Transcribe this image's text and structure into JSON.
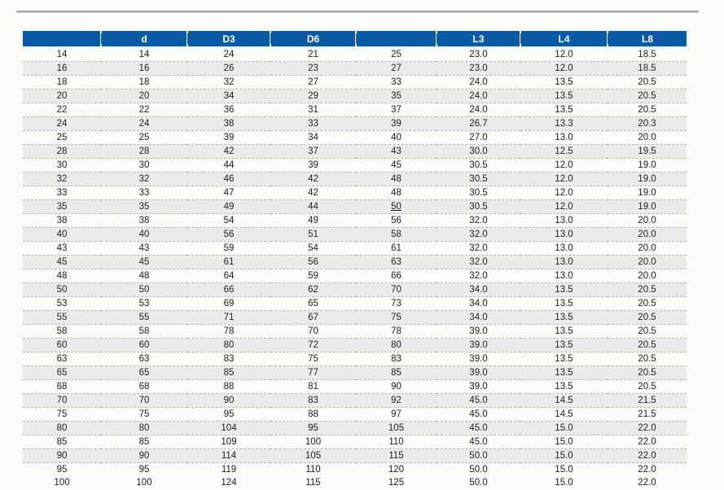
{
  "colors": {
    "header_bg": "#0a5aa5",
    "header_text": "#ffffff",
    "stripe_bg": "#ebebeb",
    "body_text": "#1e1e1e"
  },
  "table": {
    "columns": [
      "",
      "d",
      "D3",
      "D6",
      "",
      "L3",
      "L4",
      "L8"
    ],
    "rows": [
      [
        "14",
        "14",
        "24",
        "21",
        "25",
        "23.0",
        "12.0",
        "18.5"
      ],
      [
        "16",
        "16",
        "26",
        "23",
        "27",
        "23.0",
        "12.0",
        "18.5"
      ],
      [
        "18",
        "18",
        "32",
        "27",
        "33",
        "24.0",
        "13.5",
        "20.5"
      ],
      [
        "20",
        "20",
        "34",
        "29",
        "35",
        "24.0",
        "13.5",
        "20.5"
      ],
      [
        "22",
        "22",
        "36",
        "31",
        "37",
        "24.0",
        "13.5",
        "20.5"
      ],
      [
        "24",
        "24",
        "38",
        "33",
        "39",
        "26.7",
        "13.3",
        "20.3"
      ],
      [
        "25",
        "25",
        "39",
        "34",
        "40",
        "27.0",
        "13.0",
        "20.0"
      ],
      [
        "28",
        "28",
        "42",
        "37",
        "43",
        "30.0",
        "12.5",
        "19.5"
      ],
      [
        "30",
        "30",
        "44",
        "39",
        "45",
        "30.5",
        "12.0",
        "19.0"
      ],
      [
        "32",
        "32",
        "46",
        "42",
        "48",
        "30.5",
        "12.0",
        "19.0"
      ],
      [
        "33",
        "33",
        "47",
        "42",
        "48",
        "30.5",
        "12.0",
        "19.0"
      ],
      [
        "35",
        "35",
        "49",
        "44",
        "50",
        "30.5",
        "12.0",
        "19.0"
      ],
      [
        "38",
        "38",
        "54",
        "49",
        "56",
        "32.0",
        "13.0",
        "20.0"
      ],
      [
        "40",
        "40",
        "56",
        "51",
        "58",
        "32.0",
        "13.0",
        "20.0"
      ],
      [
        "43",
        "43",
        "59",
        "54",
        "61",
        "32.0",
        "13.0",
        "20.0"
      ],
      [
        "45",
        "45",
        "61",
        "56",
        "63",
        "32.0",
        "13.0",
        "20.0"
      ],
      [
        "48",
        "48",
        "64",
        "59",
        "66",
        "32.0",
        "13.0",
        "20.0"
      ],
      [
        "50",
        "50",
        "66",
        "62",
        "70",
        "34.0",
        "13.5",
        "20.5"
      ],
      [
        "53",
        "53",
        "69",
        "65",
        "73",
        "34.0",
        "13.5",
        "20.5"
      ],
      [
        "55",
        "55",
        "71",
        "67",
        "75",
        "34.0",
        "13.5",
        "20.5"
      ],
      [
        "58",
        "58",
        "78",
        "70",
        "78",
        "39.0",
        "13.5",
        "20.5"
      ],
      [
        "60",
        "60",
        "80",
        "72",
        "80",
        "39.0",
        "13.5",
        "20.5"
      ],
      [
        "63",
        "63",
        "83",
        "75",
        "83",
        "39.0",
        "13.5",
        "20.5"
      ],
      [
        "65",
        "65",
        "85",
        "77",
        "85",
        "39.0",
        "13.5",
        "20.5"
      ],
      [
        "68",
        "68",
        "88",
        "81",
        "90",
        "39.0",
        "13.5",
        "20.5"
      ],
      [
        "70",
        "70",
        "90",
        "83",
        "92",
        "45.0",
        "14.5",
        "21.5"
      ],
      [
        "75",
        "75",
        "95",
        "88",
        "97",
        "45.0",
        "14.5",
        "21.5"
      ],
      [
        "80",
        "80",
        "104",
        "95",
        "105",
        "45.0",
        "15.0",
        "22.0"
      ],
      [
        "85",
        "85",
        "109",
        "100",
        "110",
        "45.0",
        "15.0",
        "22.0"
      ],
      [
        "90",
        "90",
        "114",
        "105",
        "115",
        "50.0",
        "15.0",
        "22.0"
      ],
      [
        "95",
        "95",
        "119",
        "110",
        "120",
        "50.0",
        "15.0",
        "22.0"
      ],
      [
        "100",
        "100",
        "124",
        "115",
        "125",
        "50.0",
        "15.0",
        "22.0"
      ]
    ],
    "underlined_cells": [
      [
        11,
        4
      ]
    ]
  }
}
